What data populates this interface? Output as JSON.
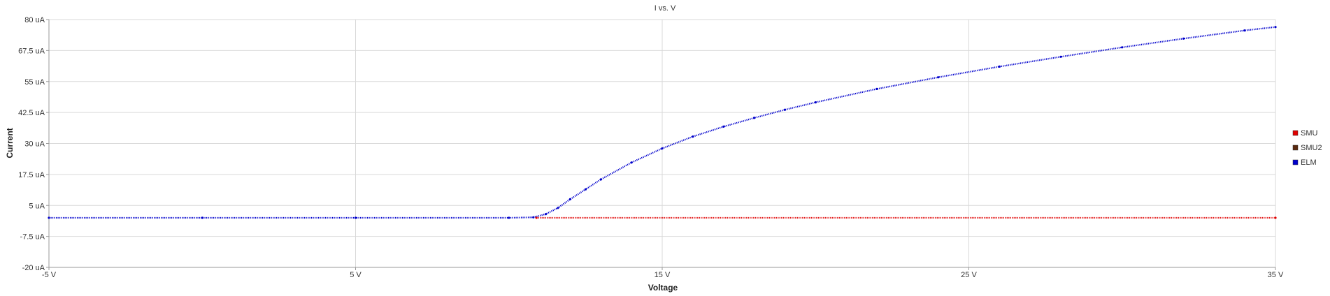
{
  "chart_data": {
    "type": "line",
    "title": "I vs. V",
    "xlabel": "Voltage",
    "ylabel": "Current",
    "xlim": [
      -5,
      35
    ],
    "ylim": [
      -20,
      80
    ],
    "x_unit": "V",
    "y_unit": "uA",
    "x_ticks": [
      -5,
      5,
      15,
      25,
      35
    ],
    "x_tick_labels": [
      "-5 V",
      "5 V",
      "15 V",
      "25 V",
      "35 V"
    ],
    "y_ticks": [
      80,
      67.5,
      55,
      42.5,
      30,
      17.5,
      5,
      -7.5,
      -20
    ],
    "y_tick_labels": [
      "80 uA",
      "67.5 uA",
      "55 uA",
      "42.5 uA",
      "30 uA",
      "17.5 uA",
      "5 uA",
      "-7.5 uA",
      "-20 uA"
    ],
    "grid": true,
    "legend_position": "right",
    "series": [
      {
        "name": "SMU",
        "color": "#e00000",
        "x": [
          -5,
          35
        ],
        "y": [
          0,
          0
        ]
      },
      {
        "name": "SMU2",
        "color": "#5a2a10",
        "x": [],
        "y": []
      },
      {
        "name": "ELM",
        "color": "#0000cc",
        "x": [
          -5,
          0,
          5,
          10,
          10.8,
          11.2,
          11.6,
          12.0,
          12.5,
          13.0,
          14.0,
          15.0,
          16.0,
          17.0,
          18.0,
          19.0,
          20.0,
          22.0,
          24.0,
          26.0,
          28.0,
          30.0,
          32.0,
          34.0,
          35.0
        ],
        "y": [
          0,
          0,
          0,
          0,
          0.2,
          1.5,
          4.0,
          7.5,
          11.5,
          15.5,
          22.3,
          28.0,
          32.8,
          36.8,
          40.3,
          43.6,
          46.6,
          52.0,
          56.7,
          61.0,
          65.0,
          68.8,
          72.3,
          75.6,
          77.0
        ]
      }
    ]
  }
}
